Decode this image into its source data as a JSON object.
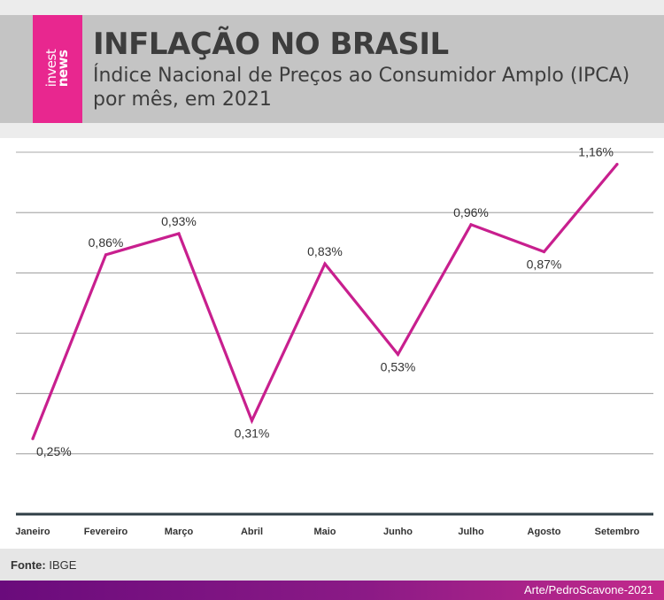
{
  "brand": {
    "line1": "invest",
    "line2": "news",
    "color": "#e8278f"
  },
  "header": {
    "title": "INFLAÇÃO NO BRASIL",
    "subtitle": "Índice Nacional de Preços ao Consumidor Amplo (IPCA) por mês, em 2021"
  },
  "chart_data": {
    "type": "line",
    "title": "INFLAÇÃO NO BRASIL",
    "subtitle": "Índice Nacional de Preços ao Consumidor Amplo (IPCA) por mês, em 2021",
    "xlabel": "",
    "ylabel": "",
    "categories": [
      "Janeiro",
      "Fevereiro",
      "Março",
      "Abril",
      "Maio",
      "Junho",
      "Julho",
      "Agosto",
      "Setembro"
    ],
    "series": [
      {
        "name": "IPCA",
        "values": [
          0.25,
          0.86,
          0.93,
          0.31,
          0.83,
          0.53,
          0.96,
          0.87,
          1.16
        ],
        "labels": [
          "0,25%",
          "0,86%",
          "0,93%",
          "0,31%",
          "0,83%",
          "0,53%",
          "0,96%",
          "0,87%",
          "1,16%"
        ],
        "color": "#c81f8e"
      }
    ],
    "ylim": [
      0,
      1.2
    ],
    "grid": true
  },
  "footer": {
    "source_label": "Fonte:",
    "source_value": "IBGE",
    "credit": "Arte/PedroScavone-2021"
  }
}
